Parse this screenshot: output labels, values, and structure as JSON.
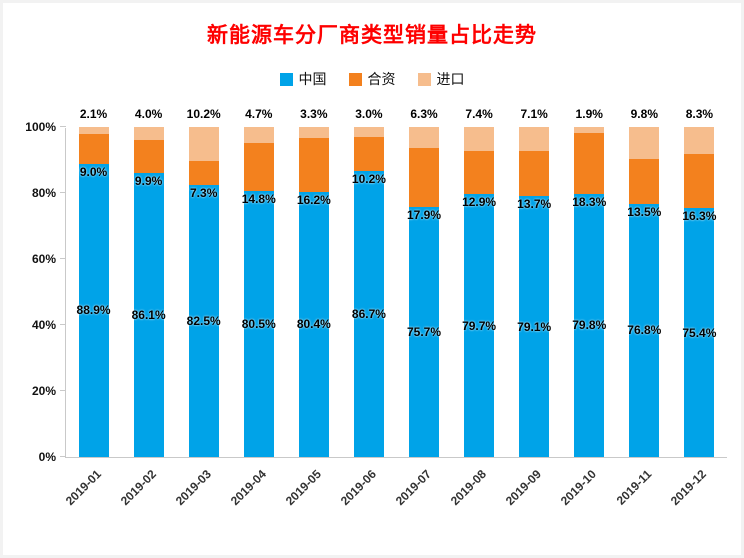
{
  "title": "新能源车分厂商类型销量占比走势",
  "colors": {
    "title": "#fe0000",
    "axis": "#c9c9c9",
    "value_label": "#000000"
  },
  "chart_data": {
    "type": "bar",
    "stacked": true,
    "title": "新能源车分厂商类型销量占比走势",
    "xlabel": "",
    "ylabel": "",
    "ylim": [
      0,
      100
    ],
    "yticks": [
      0,
      20,
      40,
      60,
      80,
      100
    ],
    "ytick_labels": [
      "0%",
      "20%",
      "40%",
      "60%",
      "80%",
      "100%"
    ],
    "grid": false,
    "legend_position": "top",
    "value_label_format": "one-decimal-percent",
    "categories": [
      "2019-01",
      "2019-02",
      "2019-03",
      "2019-04",
      "2019-05",
      "2019-06",
      "2019-07",
      "2019-08",
      "2019-09",
      "2019-10",
      "2019-11",
      "2019-12"
    ],
    "series": [
      {
        "name": "中国",
        "key": "china",
        "color": "#00a3e8",
        "values": [
          88.9,
          86.1,
          82.5,
          80.5,
          80.4,
          86.7,
          75.7,
          79.7,
          79.1,
          79.8,
          76.8,
          75.4
        ]
      },
      {
        "name": "合资",
        "key": "joint-venture",
        "color": "#f3811e",
        "values": [
          9.0,
          9.9,
          7.3,
          14.8,
          16.2,
          10.2,
          17.9,
          12.9,
          13.7,
          18.3,
          13.5,
          16.3
        ]
      },
      {
        "name": "进口",
        "key": "import",
        "color": "#f6bd8d",
        "values": [
          2.1,
          4.0,
          10.2,
          4.7,
          3.3,
          3.0,
          6.3,
          7.4,
          7.1,
          1.9,
          9.8,
          8.3
        ]
      }
    ]
  }
}
